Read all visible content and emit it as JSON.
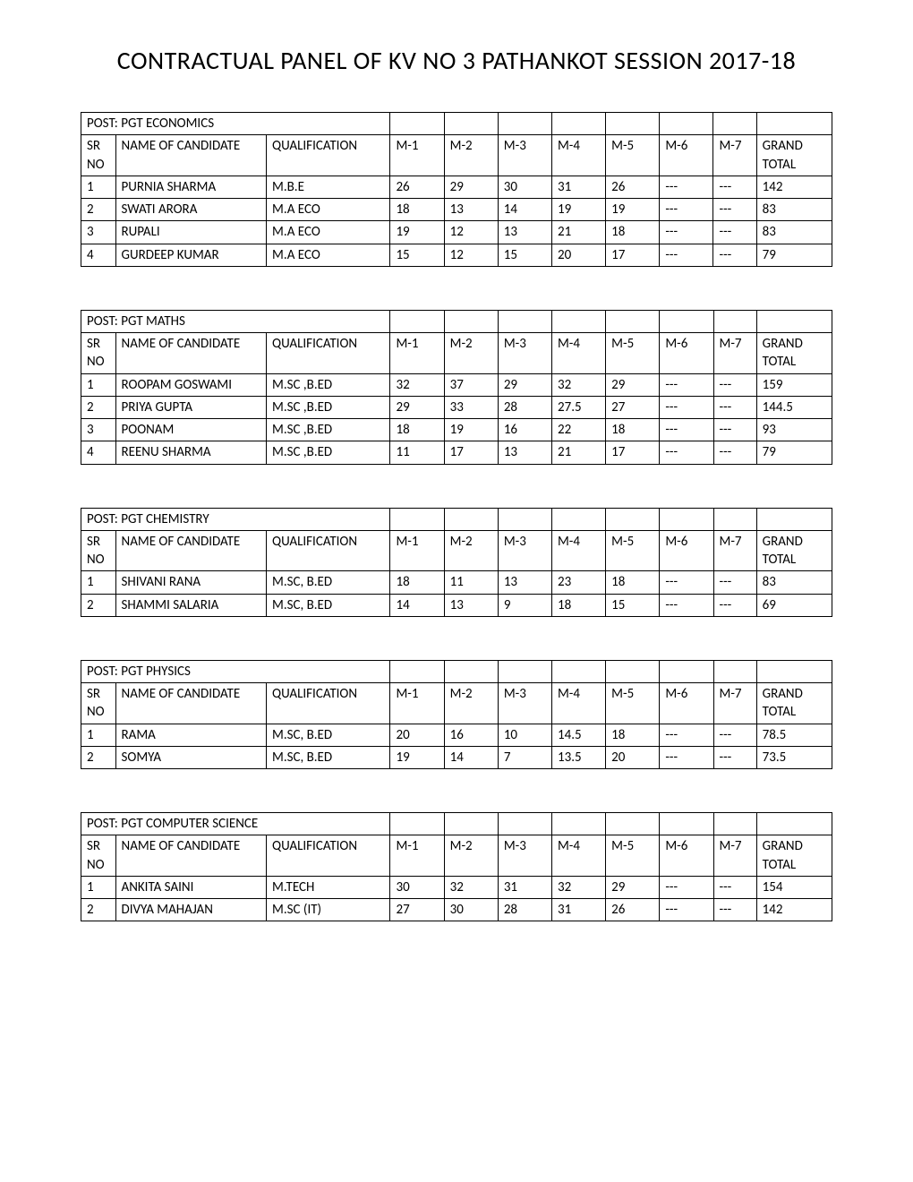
{
  "title": "CONTRACTUAL PANEL OF KV NO 3 PATHANKOT SESSION 2017-18",
  "header": {
    "sr_no": "SR NO",
    "name": "NAME OF CANDIDATE",
    "qual": "QUALIFICATION",
    "m1": "M-1",
    "m2": "M-2",
    "m3": "M-3",
    "m4": "M-4",
    "m5": "M-5",
    "m6": "M-6",
    "m7": "M-7",
    "total": "GRAND TOTAL"
  },
  "tables": [
    {
      "post": "POST: PGT ECONOMICS",
      "rows": [
        {
          "sr": "1",
          "name": "PURNIA SHARMA",
          "qual": "M.B.E",
          "m1": "26",
          "m2": "29",
          "m3": "30",
          "m4": "31",
          "m5": "26",
          "m6": "---",
          "m7": "---",
          "total": "142"
        },
        {
          "sr": "2",
          "name": "SWATI ARORA",
          "qual": "M.A ECO",
          "m1": "18",
          "m2": "13",
          "m3": "14",
          "m4": "19",
          "m5": "19",
          "m6": "---",
          "m7": "---",
          "total": "83"
        },
        {
          "sr": "3",
          "name": "RUPALI",
          "qual": "M.A ECO",
          "m1": "19",
          "m2": "12",
          "m3": "13",
          "m4": "21",
          "m5": "18",
          "m6": "---",
          "m7": "---",
          "total": "83"
        },
        {
          "sr": "4",
          "name": "GURDEEP KUMAR",
          "qual": "M.A ECO",
          "m1": "15",
          "m2": "12",
          "m3": "15",
          "m4": "20",
          "m5": "17",
          "m6": "---",
          "m7": "---",
          "total": "79"
        }
      ]
    },
    {
      "post": "POST: PGT MATHS",
      "rows": [
        {
          "sr": "1",
          "name": "ROOPAM GOSWAMI",
          "qual": "M.SC ,B.ED",
          "m1": "32",
          "m2": "37",
          "m3": "29",
          "m4": "32",
          "m5": "29",
          "m6": "---",
          "m7": "---",
          "total": "159"
        },
        {
          "sr": "2",
          "name": "PRIYA GUPTA",
          "qual": "M.SC ,B.ED",
          "m1": "29",
          "m2": "33",
          "m3": "28",
          "m4": "27.5",
          "m5": "27",
          "m6": "---",
          "m7": "---",
          "total": "144.5"
        },
        {
          "sr": "3",
          "name": "POONAM",
          "qual": "M.SC ,B.ED",
          "m1": "18",
          "m2": "19",
          "m3": "16",
          "m4": "22",
          "m5": "18",
          "m6": "---",
          "m7": "---",
          "total": "93"
        },
        {
          "sr": "4",
          "name": "REENU SHARMA",
          "qual": "M.SC ,B.ED",
          "m1": "11",
          "m2": "17",
          "m3": "13",
          "m4": "21",
          "m5": "17",
          "m6": "---",
          "m7": "---",
          "total": "79"
        }
      ]
    },
    {
      "post": "POST: PGT CHEMISTRY",
      "rows": [
        {
          "sr": "1",
          "name": "SHIVANI RANA",
          "qual": "M.SC, B.ED",
          "m1": "18",
          "m2": "11",
          "m3": "13",
          "m4": "23",
          "m5": "18",
          "m6": "---",
          "m7": "---",
          "total": "83"
        },
        {
          "sr": "2",
          "name": "SHAMMI SALARIA",
          "qual": "M.SC, B.ED",
          "m1": "14",
          "m2": "13",
          "m3": "9",
          "m4": "18",
          "m5": "15",
          "m6": "---",
          "m7": "---",
          "total": "69"
        }
      ]
    },
    {
      "post": "POST: PGT PHYSICS",
      "rows": [
        {
          "sr": "1",
          "name": "RAMA",
          "qual": "M.SC, B.ED",
          "m1": "20",
          "m2": "16",
          "m3": "10",
          "m4": "14.5",
          "m5": "18",
          "m6": "---",
          "m7": "---",
          "total": "78.5"
        },
        {
          "sr": "2",
          "name": "SOMYA",
          "qual": "M.SC, B.ED",
          "m1": "19",
          "m2": "14",
          "m3": "7",
          "m4": "13.5",
          "m5": "20",
          "m6": "---",
          "m7": "---",
          "total": "73.5"
        }
      ]
    },
    {
      "post": "POST: PGT COMPUTER SCIENCE",
      "rows": [
        {
          "sr": "1",
          "name": "ANKITA SAINI",
          "qual": "M.TECH",
          "m1": "30",
          "m2": "32",
          "m3": "31",
          "m4": "32",
          "m5": "29",
          "m6": "---",
          "m7": "---",
          "total": "154"
        },
        {
          "sr": "2",
          "name": "DIVYA MAHAJAN",
          "qual": "M.SC (IT)",
          "m1": "27",
          "m2": "30",
          "m3": "28",
          "m4": "31",
          "m5": "26",
          "m6": "---",
          "m7": "---",
          "total": "142"
        }
      ]
    }
  ]
}
